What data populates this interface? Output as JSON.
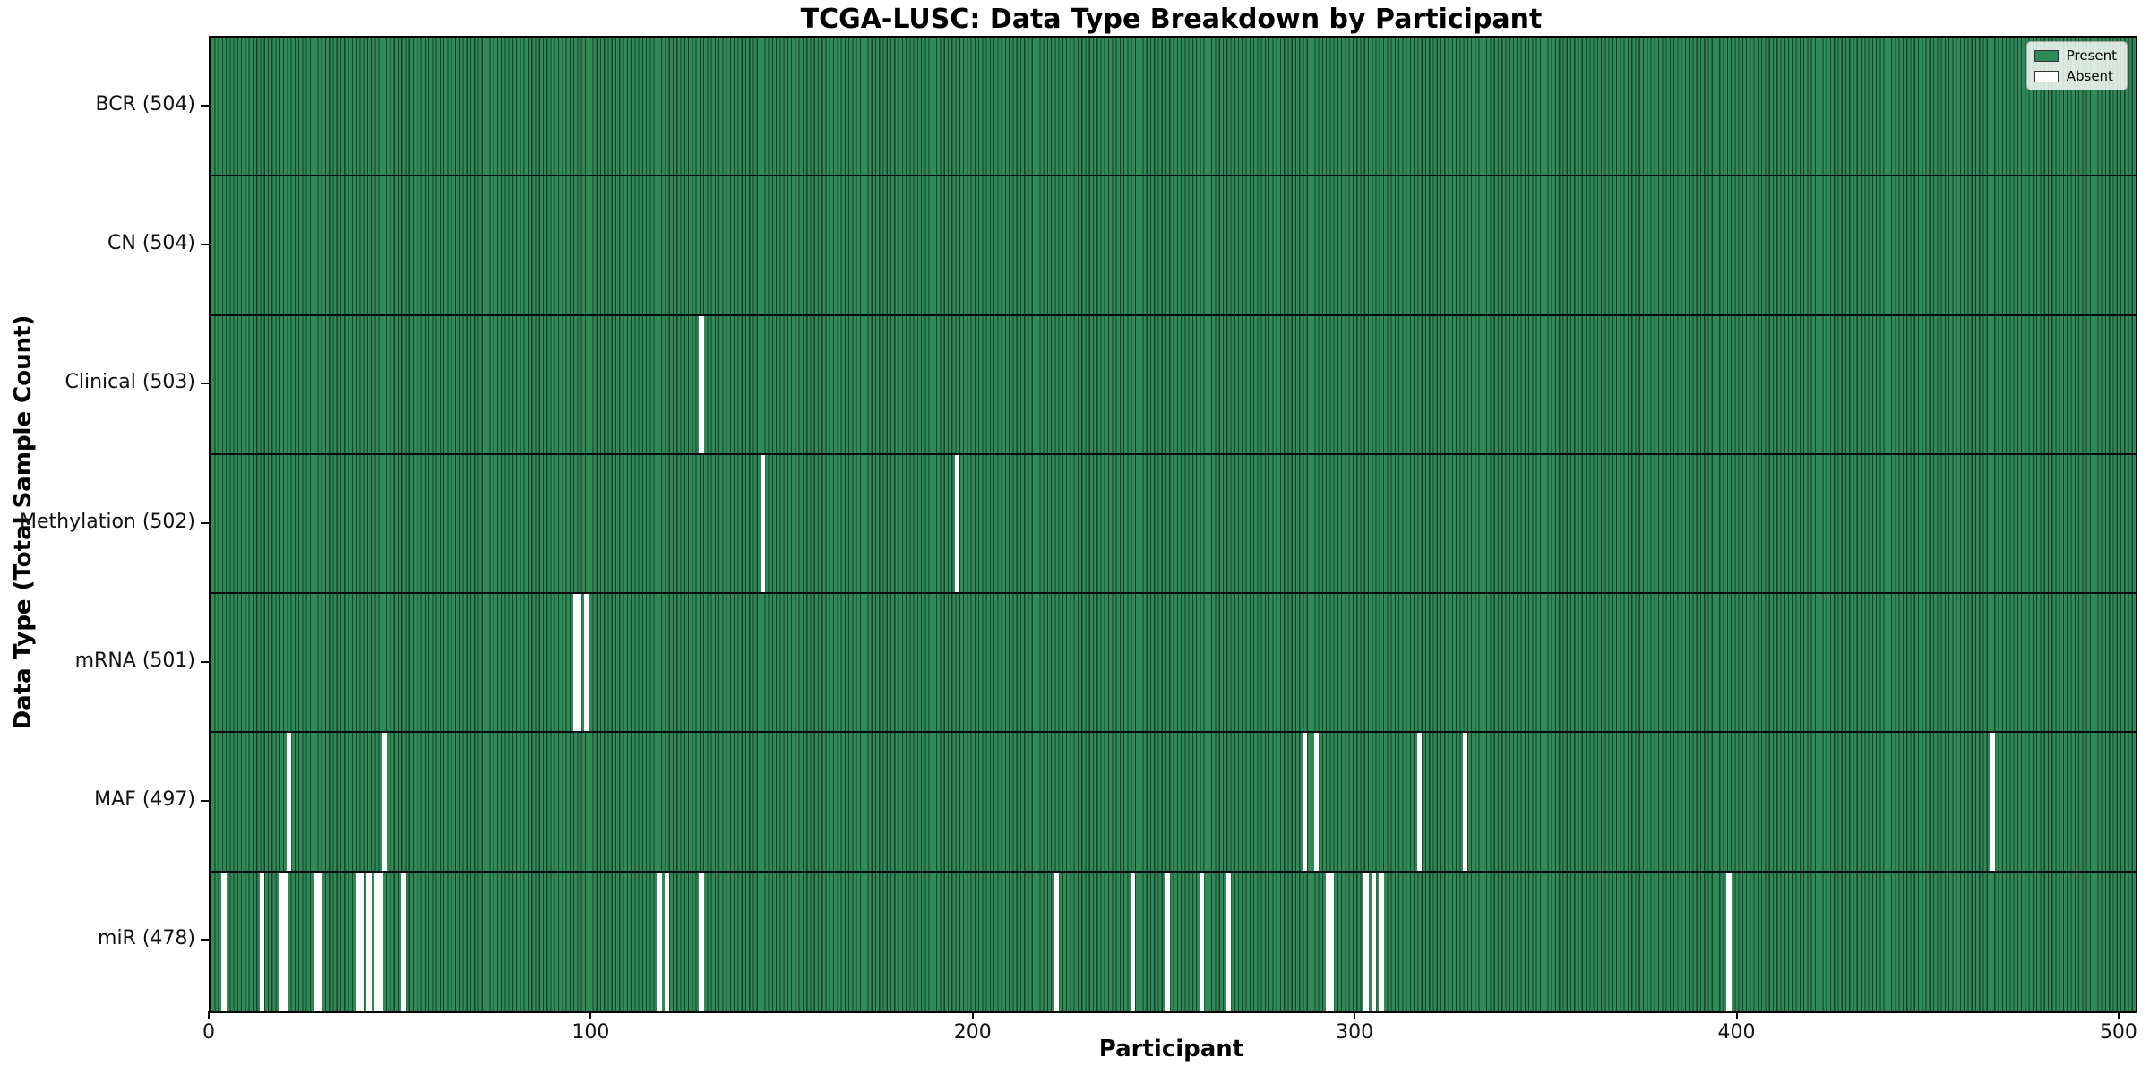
{
  "title": "TCGA-LUSC: Data Type Breakdown by Participant",
  "chart_data": {
    "type": "heatmap",
    "title": "TCGA-LUSC: Data Type Breakdown by Participant",
    "xlabel": "Participant",
    "ylabel": "Data Type (Total Sample Count)",
    "xlim": [
      0,
      504
    ],
    "n_participants": 504,
    "x_ticks": [
      0,
      100,
      200,
      300,
      400,
      500
    ],
    "grid": false,
    "legend_position": "upper right",
    "legend": [
      {
        "label": "Present",
        "color": "#2f8a57"
      },
      {
        "label": "Absent",
        "color": "#ffffff"
      }
    ],
    "colors": {
      "present_fill": "#2f8a57",
      "bar_edge": "#1a3f2c",
      "absent_fill": "#ffffff",
      "frame": "#000000"
    },
    "rows": [
      {
        "label": "BCR (504)",
        "name": "BCR",
        "total": 504,
        "absent": []
      },
      {
        "label": "CN (504)",
        "name": "CN",
        "total": 504,
        "absent": []
      },
      {
        "label": "Clinical (503)",
        "name": "Clinical",
        "total": 503,
        "absent": [
          128
        ]
      },
      {
        "label": "Methylation (502)",
        "name": "Methylation",
        "total": 502,
        "absent": [
          144,
          195
        ]
      },
      {
        "label": "mRNA (501)",
        "name": "mRNA",
        "total": 501,
        "absent": [
          95,
          96,
          98
        ]
      },
      {
        "label": "MAF (497)",
        "name": "MAF",
        "total": 497,
        "absent": [
          20,
          45,
          286,
          289,
          316,
          328,
          466
        ]
      },
      {
        "label": "miR (478)",
        "name": "miR",
        "total": 478,
        "absent": [
          3,
          13,
          18,
          19,
          27,
          28,
          38,
          39,
          41,
          43,
          44,
          50,
          117,
          119,
          128,
          221,
          241,
          250,
          259,
          266,
          292,
          293,
          302,
          304,
          306,
          397
        ]
      }
    ]
  }
}
